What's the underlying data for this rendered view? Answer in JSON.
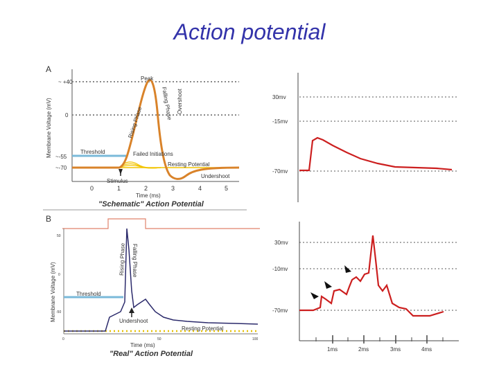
{
  "slide": {
    "title": "Action potential"
  },
  "panel_a": {
    "letter": "A",
    "ylabel": "Membrane Voltage (mV)",
    "y_ticks": [
      "~ +40",
      "0",
      "~-55",
      "~-70"
    ],
    "x_ticks": [
      "0",
      "1",
      "2",
      "3",
      "4",
      "5"
    ],
    "xlabel": "Time (ms)",
    "caption": "\"Schematic\" Action Potential",
    "labels": {
      "peak": "Peak",
      "rising": "Rising Phase",
      "falling": "Falling Phase",
      "overshoot": "Overshoot",
      "threshold": "Threshold",
      "failed": "Failed Initiations",
      "resting": "Resting Potential",
      "undershoot": "Undershoot",
      "stimulus": "Stimulus"
    },
    "colors": {
      "trace": "#d9832a",
      "threshold": "#7ab9d9",
      "failed": "#f2c400"
    }
  },
  "panel_b": {
    "letter": "B",
    "ylabel": "Membrane Voltage (mV)",
    "y_ticks": [
      "50",
      "0",
      "-50"
    ],
    "x_ticks": [
      "0",
      "50",
      "100"
    ],
    "xlabel": "Time (ms)",
    "caption": "\"Real\" Action Potential",
    "labels": {
      "rising": "Rising Phase",
      "falling": "Falling Phase",
      "threshold": "Threshold",
      "undershoot": "Undershoot",
      "resting": "Resting Potential"
    },
    "colors": {
      "trace": "#2b2a6b",
      "threshold": "#7ab9d9",
      "resting": "#e6c000"
    }
  },
  "right_top": {
    "y_labels": [
      "30mv",
      "-15mv",
      "-70mv"
    ],
    "color": "#cc1f1f"
  },
  "right_bottom": {
    "y_labels": [
      "30mv",
      "-10mv",
      "-70mv"
    ],
    "x_labels": [
      "1ms",
      "2ms",
      "3ms",
      "4ms"
    ],
    "color": "#cc1f1f"
  }
}
